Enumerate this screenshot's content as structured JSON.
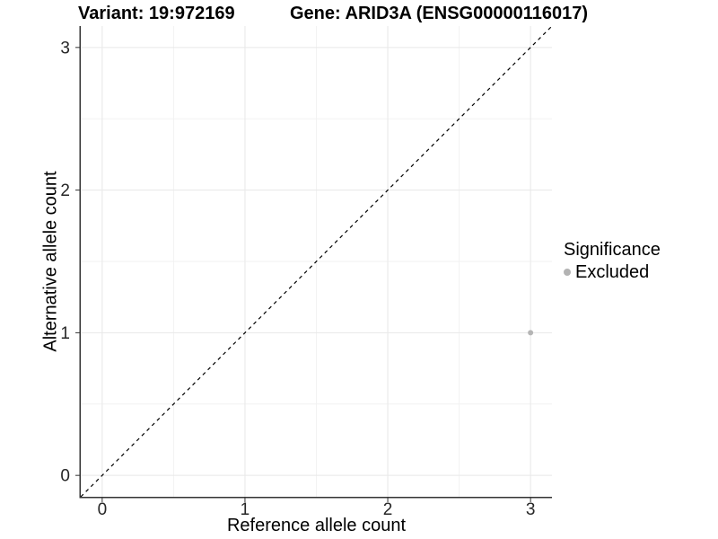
{
  "chart_data": {
    "type": "scatter",
    "title_left": "Variant: 19:972169",
    "title_right": "Gene: ARID3A (ENSG00000116017)",
    "xlabel": "Reference allele count",
    "ylabel": "Alternative allele count",
    "x_ticks": [
      0,
      1,
      2,
      3
    ],
    "y_ticks": [
      0,
      1,
      2,
      3
    ],
    "xlim": [
      -0.15,
      3.15
    ],
    "ylim": [
      -0.15,
      3.15
    ],
    "grid": "major+minor",
    "points": [
      {
        "x": 3,
        "y": 1,
        "significance": "Excluded"
      }
    ],
    "reference_line": {
      "type": "identity",
      "style": "dashed",
      "from": [
        -0.15,
        -0.15
      ],
      "to": [
        3.15,
        3.15
      ]
    },
    "legend": {
      "title": "Significance",
      "position": "right",
      "items": [
        {
          "label": "Excluded",
          "color": "#b5b5b5"
        }
      ]
    },
    "colors": {
      "point": "#b5b5b5",
      "grid_major": "#e8e8e8",
      "grid_minor": "#f2f2f2",
      "axis_line": "#333333",
      "tick_label": "#262626",
      "dashed_line": "#000000",
      "background": "#ffffff"
    }
  }
}
